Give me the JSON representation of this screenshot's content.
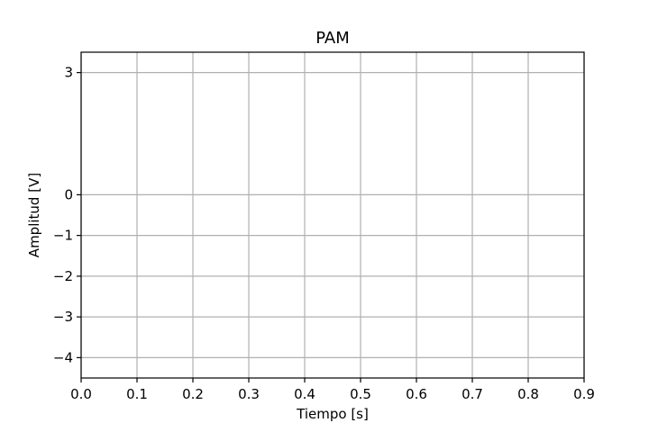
{
  "chart_data": {
    "type": "line",
    "title": "PAM",
    "xlabel": "Tiempo [s]",
    "ylabel": "Amplitud [V]",
    "xlim": [
      0.0,
      0.9
    ],
    "ylim": [
      -4.5,
      3.5
    ],
    "x_ticks": [
      0.0,
      0.1,
      0.2,
      0.3,
      0.4,
      0.5,
      0.6,
      0.7,
      0.8,
      0.9
    ],
    "x_tick_labels": [
      "0.0",
      "0.1",
      "0.2",
      "0.3",
      "0.4",
      "0.5",
      "0.6",
      "0.7",
      "0.8",
      "0.9"
    ],
    "y_ticks": [
      3,
      0,
      -1,
      -2,
      -3,
      -4
    ],
    "y_tick_labels": [
      "3",
      "0",
      "−1",
      "−2",
      "−3",
      "−4"
    ],
    "grid": true,
    "series": []
  },
  "colors": {
    "grid": "#b0b0b0",
    "frame": "#000000",
    "background": "#ffffff"
  }
}
